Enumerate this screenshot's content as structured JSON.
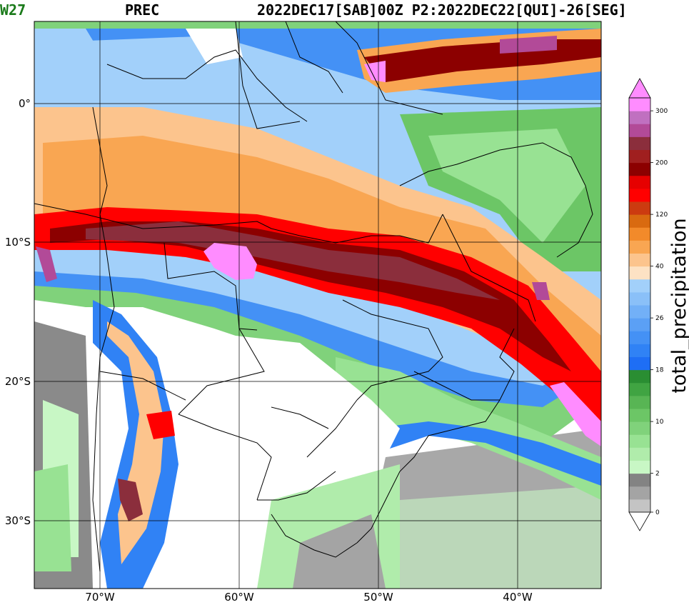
{
  "header": {
    "code": "W27",
    "variable": "PREC",
    "run": "2022DEC17[SAB]00Z P2:2022DEC22[QUI]-26[SEG]"
  },
  "axes": {
    "lat_labels": [
      "0°",
      "10°S",
      "20°S",
      "30°S"
    ],
    "lon_labels": [
      "70°W",
      "60°W",
      "50°W",
      "40°W"
    ],
    "lat_values": [
      0,
      -10,
      -20,
      -30
    ],
    "lon_values": [
      -70,
      -60,
      -50,
      -40
    ],
    "lat_range": [
      -35,
      6
    ],
    "lon_range": [
      -75,
      -34
    ]
  },
  "colorbar": {
    "label": "total_precipitation",
    "tick_labels": [
      "0",
      "2",
      "10",
      "18",
      "26",
      "40",
      "120",
      "200",
      "300"
    ],
    "tick_levels": [
      0,
      3,
      7,
      11,
      15,
      19,
      23,
      27,
      31
    ],
    "colors": [
      "#ffffff",
      "#c4c4c4",
      "#a4a4a4",
      "#838383",
      "#c8f7c5",
      "#b0ecab",
      "#98e293",
      "#80d27b",
      "#6cc666",
      "#58b554",
      "#40a442",
      "#2a8e32",
      "#1e6ef5",
      "#3082f5",
      "#4491f5",
      "#5ba0f5",
      "#72b0f7",
      "#8ac0f8",
      "#a2d0fa",
      "#fde2c4",
      "#fcc48d",
      "#f9a652",
      "#f28a2a",
      "#d96a10",
      "#cc3b10",
      "#ff0000",
      "#e60000",
      "#8c0000",
      "#a01f1f",
      "#8b2e3c",
      "#b24a98",
      "#c070c0",
      "#ff8cff"
    ]
  }
}
